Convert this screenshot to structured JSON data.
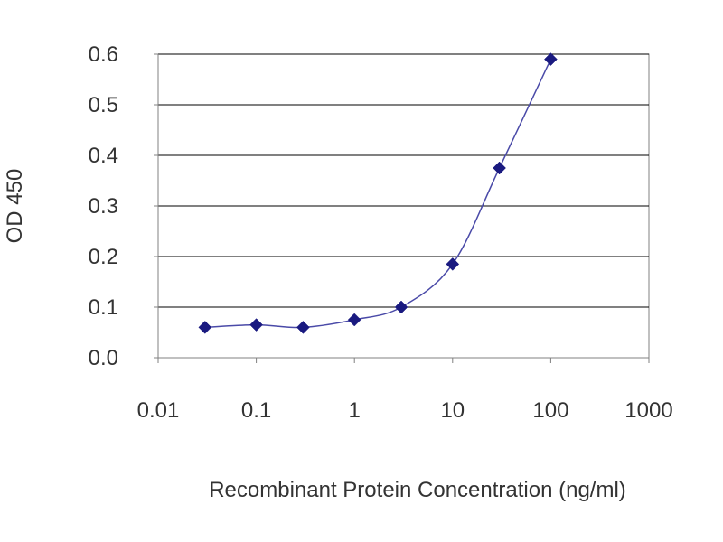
{
  "chart_data": {
    "type": "scatter",
    "title": "",
    "xlabel": "Recombinant Protein Concentration (ng/ml)",
    "ylabel": "OD 450",
    "x_scale": "log",
    "xlim": [
      0.01,
      1000
    ],
    "ylim": [
      0.0,
      0.6
    ],
    "x_ticks": [
      0.01,
      0.1,
      1,
      10,
      100,
      1000
    ],
    "x_tick_labels": [
      "0.01",
      "0.1",
      "1",
      "10",
      "100",
      "1000"
    ],
    "y_ticks": [
      0.0,
      0.1,
      0.2,
      0.3,
      0.4,
      0.5,
      0.6
    ],
    "y_tick_labels": [
      "0.0",
      "0.1",
      "0.2",
      "0.3",
      "0.4",
      "0.5",
      "0.6"
    ],
    "grid": "horizontal",
    "legend": "none",
    "series": [
      {
        "x": [
          0.03,
          0.1,
          0.3,
          1,
          3,
          10,
          30,
          100
        ],
        "y": [
          0.06,
          0.065,
          0.06,
          0.075,
          0.1,
          0.185,
          0.375,
          0.59
        ],
        "marker": "diamond",
        "line": "smooth",
        "color": "#1a1a8c"
      }
    ],
    "colors": {
      "line": "#4a4aa8",
      "marker": "#1a1a80",
      "grid": "#000000",
      "plot_border": "#808080",
      "text": "#333333",
      "background": "#ffffff"
    }
  }
}
